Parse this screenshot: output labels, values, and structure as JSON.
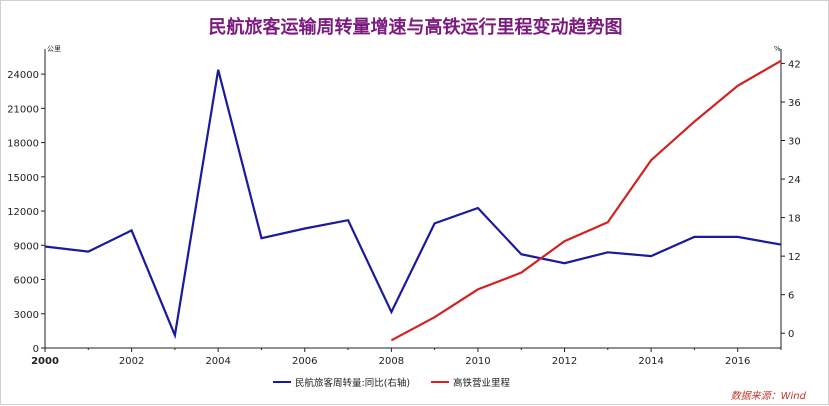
{
  "chart_data": {
    "type": "line",
    "title": "民航旅客运输周转量增速与高铁运行里程变动趋势图",
    "left_unit": "公里",
    "right_unit": "%",
    "source": "数据来源：Wind",
    "x": [
      2000,
      2001,
      2002,
      2003,
      2004,
      2005,
      2006,
      2007,
      2008,
      2009,
      2010,
      2011,
      2012,
      2013,
      2014,
      2015,
      2016,
      2017
    ],
    "x_ticks": [
      "2000",
      "2002",
      "2004",
      "2006",
      "2008",
      "2010",
      "2012",
      "2014",
      "2016"
    ],
    "xlim": [
      2000,
      2017
    ],
    "left_axis": {
      "ylim": [
        0,
        25500
      ],
      "ticks": [
        "0",
        "3000",
        "6000",
        "9000",
        "12000",
        "15000",
        "18000",
        "21000",
        "24000"
      ]
    },
    "right_axis": {
      "ylim": [
        -2.3,
        43
      ],
      "ticks": [
        "0",
        "6",
        "12",
        "18",
        "24",
        "30",
        "36",
        "42"
      ]
    },
    "series": [
      {
        "name": "民航旅客周转量:同比(右轴)",
        "axis": "right",
        "color": "#1a1a9c",
        "x": [
          2000,
          2001,
          2002,
          2003,
          2004,
          2005,
          2006,
          2007,
          2008,
          2009,
          2010,
          2011,
          2012,
          2013,
          2014,
          2015,
          2016,
          2017
        ],
        "values": [
          13.5,
          12.7,
          16.0,
          -0.3,
          41.0,
          14.8,
          16.3,
          17.6,
          3.3,
          17.1,
          19.5,
          12.3,
          10.9,
          12.6,
          12.0,
          15.0,
          15.0,
          13.8
        ]
      },
      {
        "name": "高铁营业里程",
        "axis": "left",
        "color": "#d32222",
        "x": [
          2008,
          2009,
          2010,
          2011,
          2012,
          2013,
          2014,
          2015,
          2016,
          2017
        ],
        "values": [
          672,
          2699,
          5133,
          6601,
          9356,
          11028,
          16456,
          19838,
          22980,
          25164
        ]
      }
    ],
    "legend": "bottom"
  }
}
